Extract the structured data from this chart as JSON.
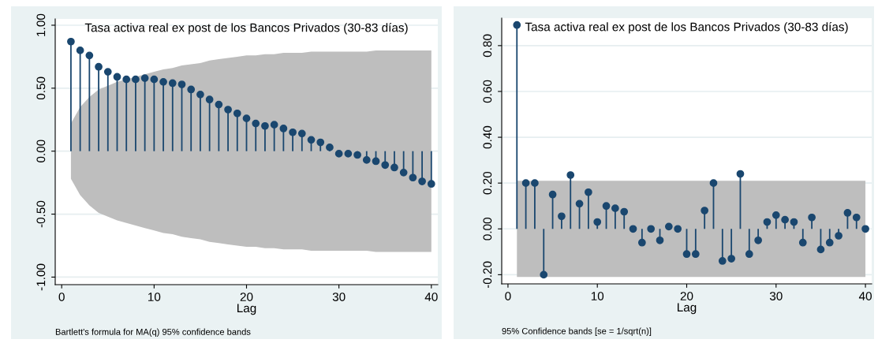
{
  "chart_data": [
    {
      "type": "lollipop",
      "title": "Tasa activa real ex post de los Bancos Privados (30-83 días)",
      "xlabel": "Lag",
      "annotations": [
        "Bartlett's formula for MA(q) 95% confidence bands"
      ],
      "x": [
        1,
        2,
        3,
        4,
        5,
        6,
        7,
        8,
        9,
        10,
        11,
        12,
        13,
        14,
        15,
        16,
        17,
        18,
        19,
        20,
        21,
        22,
        23,
        24,
        25,
        26,
        27,
        28,
        29,
        30,
        31,
        32,
        33,
        34,
        35,
        36,
        37,
        38,
        39,
        40
      ],
      "series": [
        {
          "color": "#1a476f",
          "values": [
            0.87,
            0.8,
            0.76,
            0.67,
            0.63,
            0.59,
            0.57,
            0.57,
            0.58,
            0.57,
            0.55,
            0.54,
            0.53,
            0.49,
            0.45,
            0.41,
            0.37,
            0.33,
            0.3,
            0.26,
            0.22,
            0.2,
            0.21,
            0.18,
            0.15,
            0.14,
            0.09,
            0.07,
            0.03,
            -0.02,
            -0.02,
            -0.03,
            -0.07,
            -0.08,
            -0.11,
            -0.13,
            -0.17,
            -0.21,
            -0.24,
            -0.26
          ],
          "upper": [
            0.22,
            0.35,
            0.43,
            0.49,
            0.52,
            0.55,
            0.57,
            0.59,
            0.61,
            0.63,
            0.65,
            0.66,
            0.68,
            0.69,
            0.7,
            0.72,
            0.73,
            0.74,
            0.75,
            0.76,
            0.76,
            0.77,
            0.77,
            0.78,
            0.78,
            0.78,
            0.79,
            0.79,
            0.79,
            0.79,
            0.79,
            0.79,
            0.79,
            0.8,
            0.8,
            0.8,
            0.8,
            0.8,
            0.8,
            0.8
          ],
          "lower": [
            -0.22,
            -0.35,
            -0.43,
            -0.49,
            -0.52,
            -0.55,
            -0.57,
            -0.59,
            -0.61,
            -0.63,
            -0.65,
            -0.66,
            -0.68,
            -0.69,
            -0.7,
            -0.72,
            -0.73,
            -0.74,
            -0.75,
            -0.76,
            -0.76,
            -0.77,
            -0.77,
            -0.78,
            -0.78,
            -0.78,
            -0.79,
            -0.79,
            -0.79,
            -0.79,
            -0.79,
            -0.79,
            -0.79,
            -0.8,
            -0.8,
            -0.8,
            -0.8,
            -0.8,
            -0.8,
            -0.8
          ],
          "line_style": "solid"
        }
      ],
      "xlim": [
        -0.7,
        40.7
      ],
      "xticks": [
        0,
        10,
        20,
        30,
        40
      ],
      "ylim": [
        -1.06,
        1.05
      ],
      "yticks": [
        {
          "value": -1,
          "label": "-1.00"
        },
        {
          "value": -0.5,
          "label": "-0.50"
        },
        {
          "value": 0,
          "label": "0.00"
        },
        {
          "value": 0.5,
          "label": "0.50"
        },
        {
          "value": 1,
          "label": "1.00"
        }
      ],
      "grid": "y",
      "marker": "circle"
    },
    {
      "type": "lollipop",
      "title": "Tasa activa real ex post de los Bancos Privados (30-83 días)",
      "xlabel": "Lag",
      "annotations": [
        "95% Confidence bands [se = 1/sqrt(n)]"
      ],
      "x": [
        1,
        2,
        3,
        4,
        5,
        6,
        7,
        8,
        9,
        10,
        11,
        12,
        13,
        14,
        15,
        16,
        17,
        18,
        19,
        20,
        21,
        22,
        23,
        24,
        25,
        26,
        27,
        28,
        29,
        30,
        31,
        32,
        33,
        34,
        35,
        36,
        37,
        38,
        39,
        40
      ],
      "series": [
        {
          "color": "#1a476f",
          "values": [
            0.89,
            0.2,
            0.2,
            -0.2,
            0.15,
            0.055,
            0.235,
            0.11,
            0.16,
            0.03,
            0.1,
            0.09,
            0.075,
            0.0,
            -0.06,
            0.0,
            -0.05,
            0.01,
            0.0,
            -0.11,
            -0.11,
            0.08,
            0.2,
            -0.14,
            -0.13,
            0.24,
            -0.11,
            -0.05,
            0.03,
            0.06,
            0.04,
            0.03,
            -0.06,
            0.05,
            -0.09,
            -0.06,
            -0.03,
            0.07,
            0.05,
            0.0
          ],
          "upper": [
            0.21,
            0.21,
            0.21,
            0.21,
            0.21,
            0.21,
            0.21,
            0.21,
            0.21,
            0.21,
            0.21,
            0.21,
            0.21,
            0.21,
            0.21,
            0.21,
            0.21,
            0.21,
            0.21,
            0.21,
            0.21,
            0.21,
            0.21,
            0.21,
            0.21,
            0.21,
            0.21,
            0.21,
            0.21,
            0.21,
            0.21,
            0.21,
            0.21,
            0.21,
            0.21,
            0.21,
            0.21,
            0.21,
            0.21,
            0.21
          ],
          "lower": [
            -0.21,
            -0.21,
            -0.21,
            -0.21,
            -0.21,
            -0.21,
            -0.21,
            -0.21,
            -0.21,
            -0.21,
            -0.21,
            -0.21,
            -0.21,
            -0.21,
            -0.21,
            -0.21,
            -0.21,
            -0.21,
            -0.21,
            -0.21,
            -0.21,
            -0.21,
            -0.21,
            -0.21,
            -0.21,
            -0.21,
            -0.21,
            -0.21,
            -0.21,
            -0.21,
            -0.21,
            -0.21,
            -0.21,
            -0.21,
            -0.21,
            -0.21,
            -0.21,
            -0.21,
            -0.21,
            -0.21
          ],
          "line_style": "solid"
        }
      ],
      "xlim": [
        -0.7,
        40.7
      ],
      "xticks": [
        0,
        10,
        20,
        30,
        40
      ],
      "ylim": [
        -0.24,
        0.92
      ],
      "yticks": [
        {
          "value": -0.2,
          "label": "-0.20"
        },
        {
          "value": 0,
          "label": "0.00"
        },
        {
          "value": 0.2,
          "label": "0.20"
        },
        {
          "value": 0.4,
          "label": "0.40"
        },
        {
          "value": 0.6,
          "label": "0.60"
        },
        {
          "value": 0.8,
          "label": "0.80"
        }
      ],
      "grid": "y",
      "marker": "circle"
    }
  ]
}
